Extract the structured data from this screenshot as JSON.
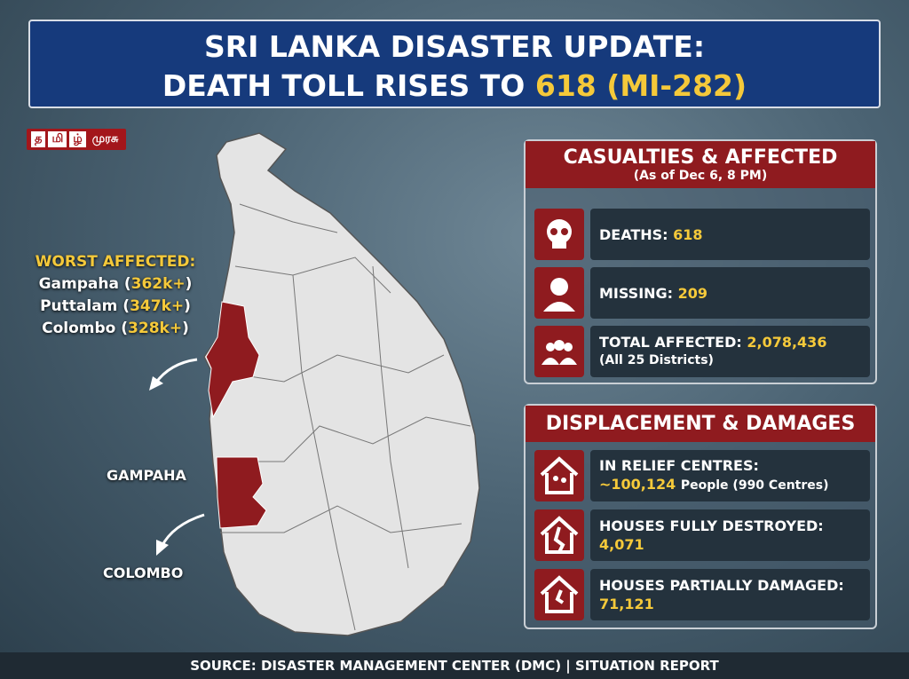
{
  "header": {
    "line1": "SRI LANKA DISASTER UPDATE:",
    "line2": "DEATH TOLL RISES TO",
    "highlight": "618 (MI-282)"
  },
  "logo": [
    "த",
    "மி",
    "ழ்",
    "முரசு"
  ],
  "worst_affected": {
    "heading": "WORST AFFECTED:",
    "items": [
      {
        "prefix": "Gampaha (",
        "value": "362k+",
        "suffix": ")"
      },
      {
        "prefix": "Puttalam (",
        "value": "347k+",
        "suffix": ")"
      },
      {
        "prefix": "Colombo (",
        "value": "328k+",
        "suffix": ")"
      }
    ]
  },
  "map_labels": [
    "GAMPAHA",
    "COLOMBO"
  ],
  "casualties": {
    "title": "CASUALTIES & AFFECTED",
    "subtitle": "(As of Dec 6, 8 PM)",
    "rows": [
      {
        "label": "DEATHS:",
        "value": "618"
      },
      {
        "label": "MISSING:",
        "value": "209"
      },
      {
        "label": "TOTAL AFFECTED:",
        "value": "2,078,436",
        "note": "(All 25 Districts)"
      }
    ]
  },
  "displacement": {
    "title": "DISPLACEMENT & DAMAGES",
    "rows": [
      {
        "label": "IN RELIEF CENTRES:",
        "value": "~100,124",
        "note": "People (990 Centres)"
      },
      {
        "label": "HOUSES FULLY DESTROYED:",
        "value": "4,071"
      },
      {
        "label": "HOUSES PARTIALLY DAMAGED:",
        "value": "71,121"
      }
    ]
  },
  "footer": "SOURCE: DISASTER MANAGEMENT CENTER (DMC) | SITUATION REPORT"
}
